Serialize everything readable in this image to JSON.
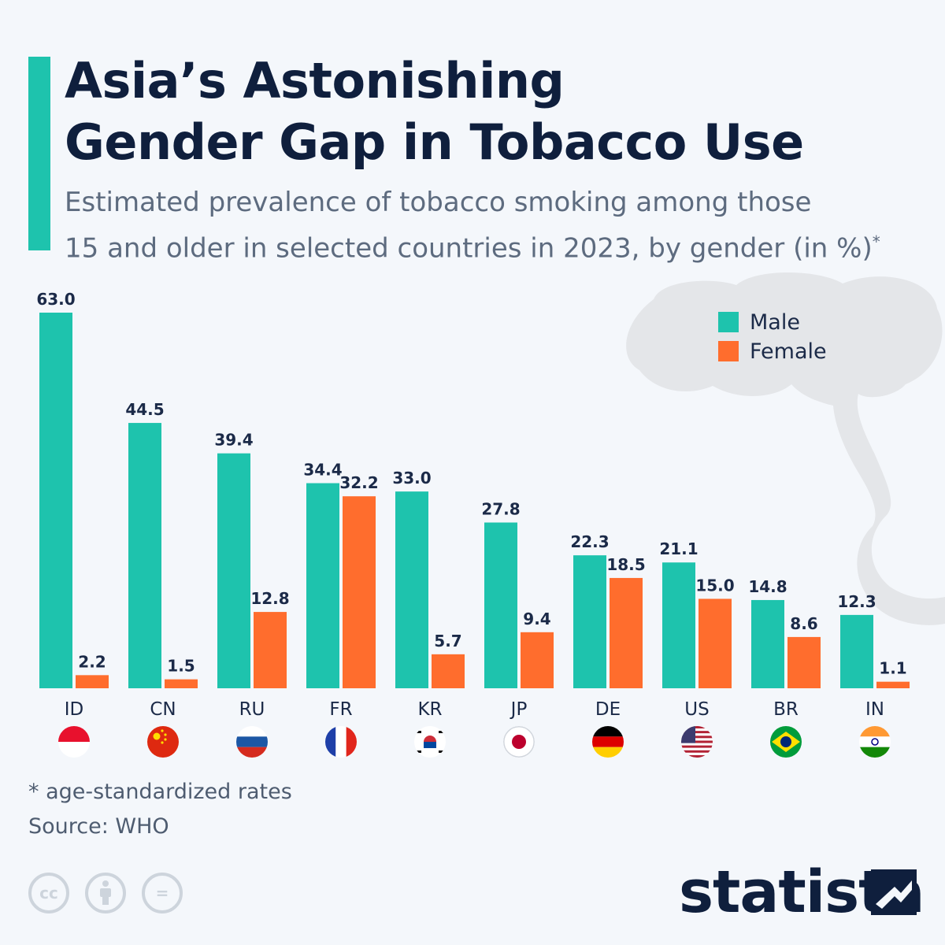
{
  "title_line1": "Asia’s Astonishing",
  "title_line2": "Gender Gap in Tobacco Use",
  "subtitle_line1": "Estimated prevalence of tobacco smoking among those",
  "subtitle_line2": "15 and older in selected countries in 2023, by gender (in %)",
  "subtitle_mark": "*",
  "footnote": "* age-standardized rates",
  "source": "Source: WHO",
  "brand": "statista",
  "license_icons": [
    "cc-icon",
    "attribution-icon",
    "no-derivatives-icon"
  ],
  "license_text": [
    "cc",
    "",
    "="
  ],
  "colors": {
    "male": "#1ec3ad",
    "female": "#ff6d2d",
    "text": "#1b2a48",
    "accent": "#1ec3ad"
  },
  "chart_data": {
    "type": "bar",
    "categories": [
      "ID",
      "CN",
      "RU",
      "FR",
      "KR",
      "JP",
      "DE",
      "US",
      "BR",
      "IN"
    ],
    "series": [
      {
        "name": "Male",
        "values": [
          63.0,
          44.5,
          39.4,
          34.4,
          33.0,
          27.8,
          22.3,
          21.1,
          14.8,
          12.3
        ]
      },
      {
        "name": "Female",
        "values": [
          2.2,
          1.5,
          12.8,
          32.2,
          5.7,
          9.4,
          18.5,
          15.0,
          8.6,
          1.1
        ]
      }
    ],
    "title": "Asia’s Astonishing Gender Gap in Tobacco Use",
    "xlabel": "",
    "ylabel": "",
    "ylim": [
      0,
      63
    ],
    "grid": false,
    "legend": "top-right",
    "flags": [
      "indonesia-flag-icon",
      "china-flag-icon",
      "russia-flag-icon",
      "france-flag-icon",
      "south-korea-flag-icon",
      "japan-flag-icon",
      "germany-flag-icon",
      "usa-flag-icon",
      "brazil-flag-icon",
      "india-flag-icon"
    ]
  }
}
